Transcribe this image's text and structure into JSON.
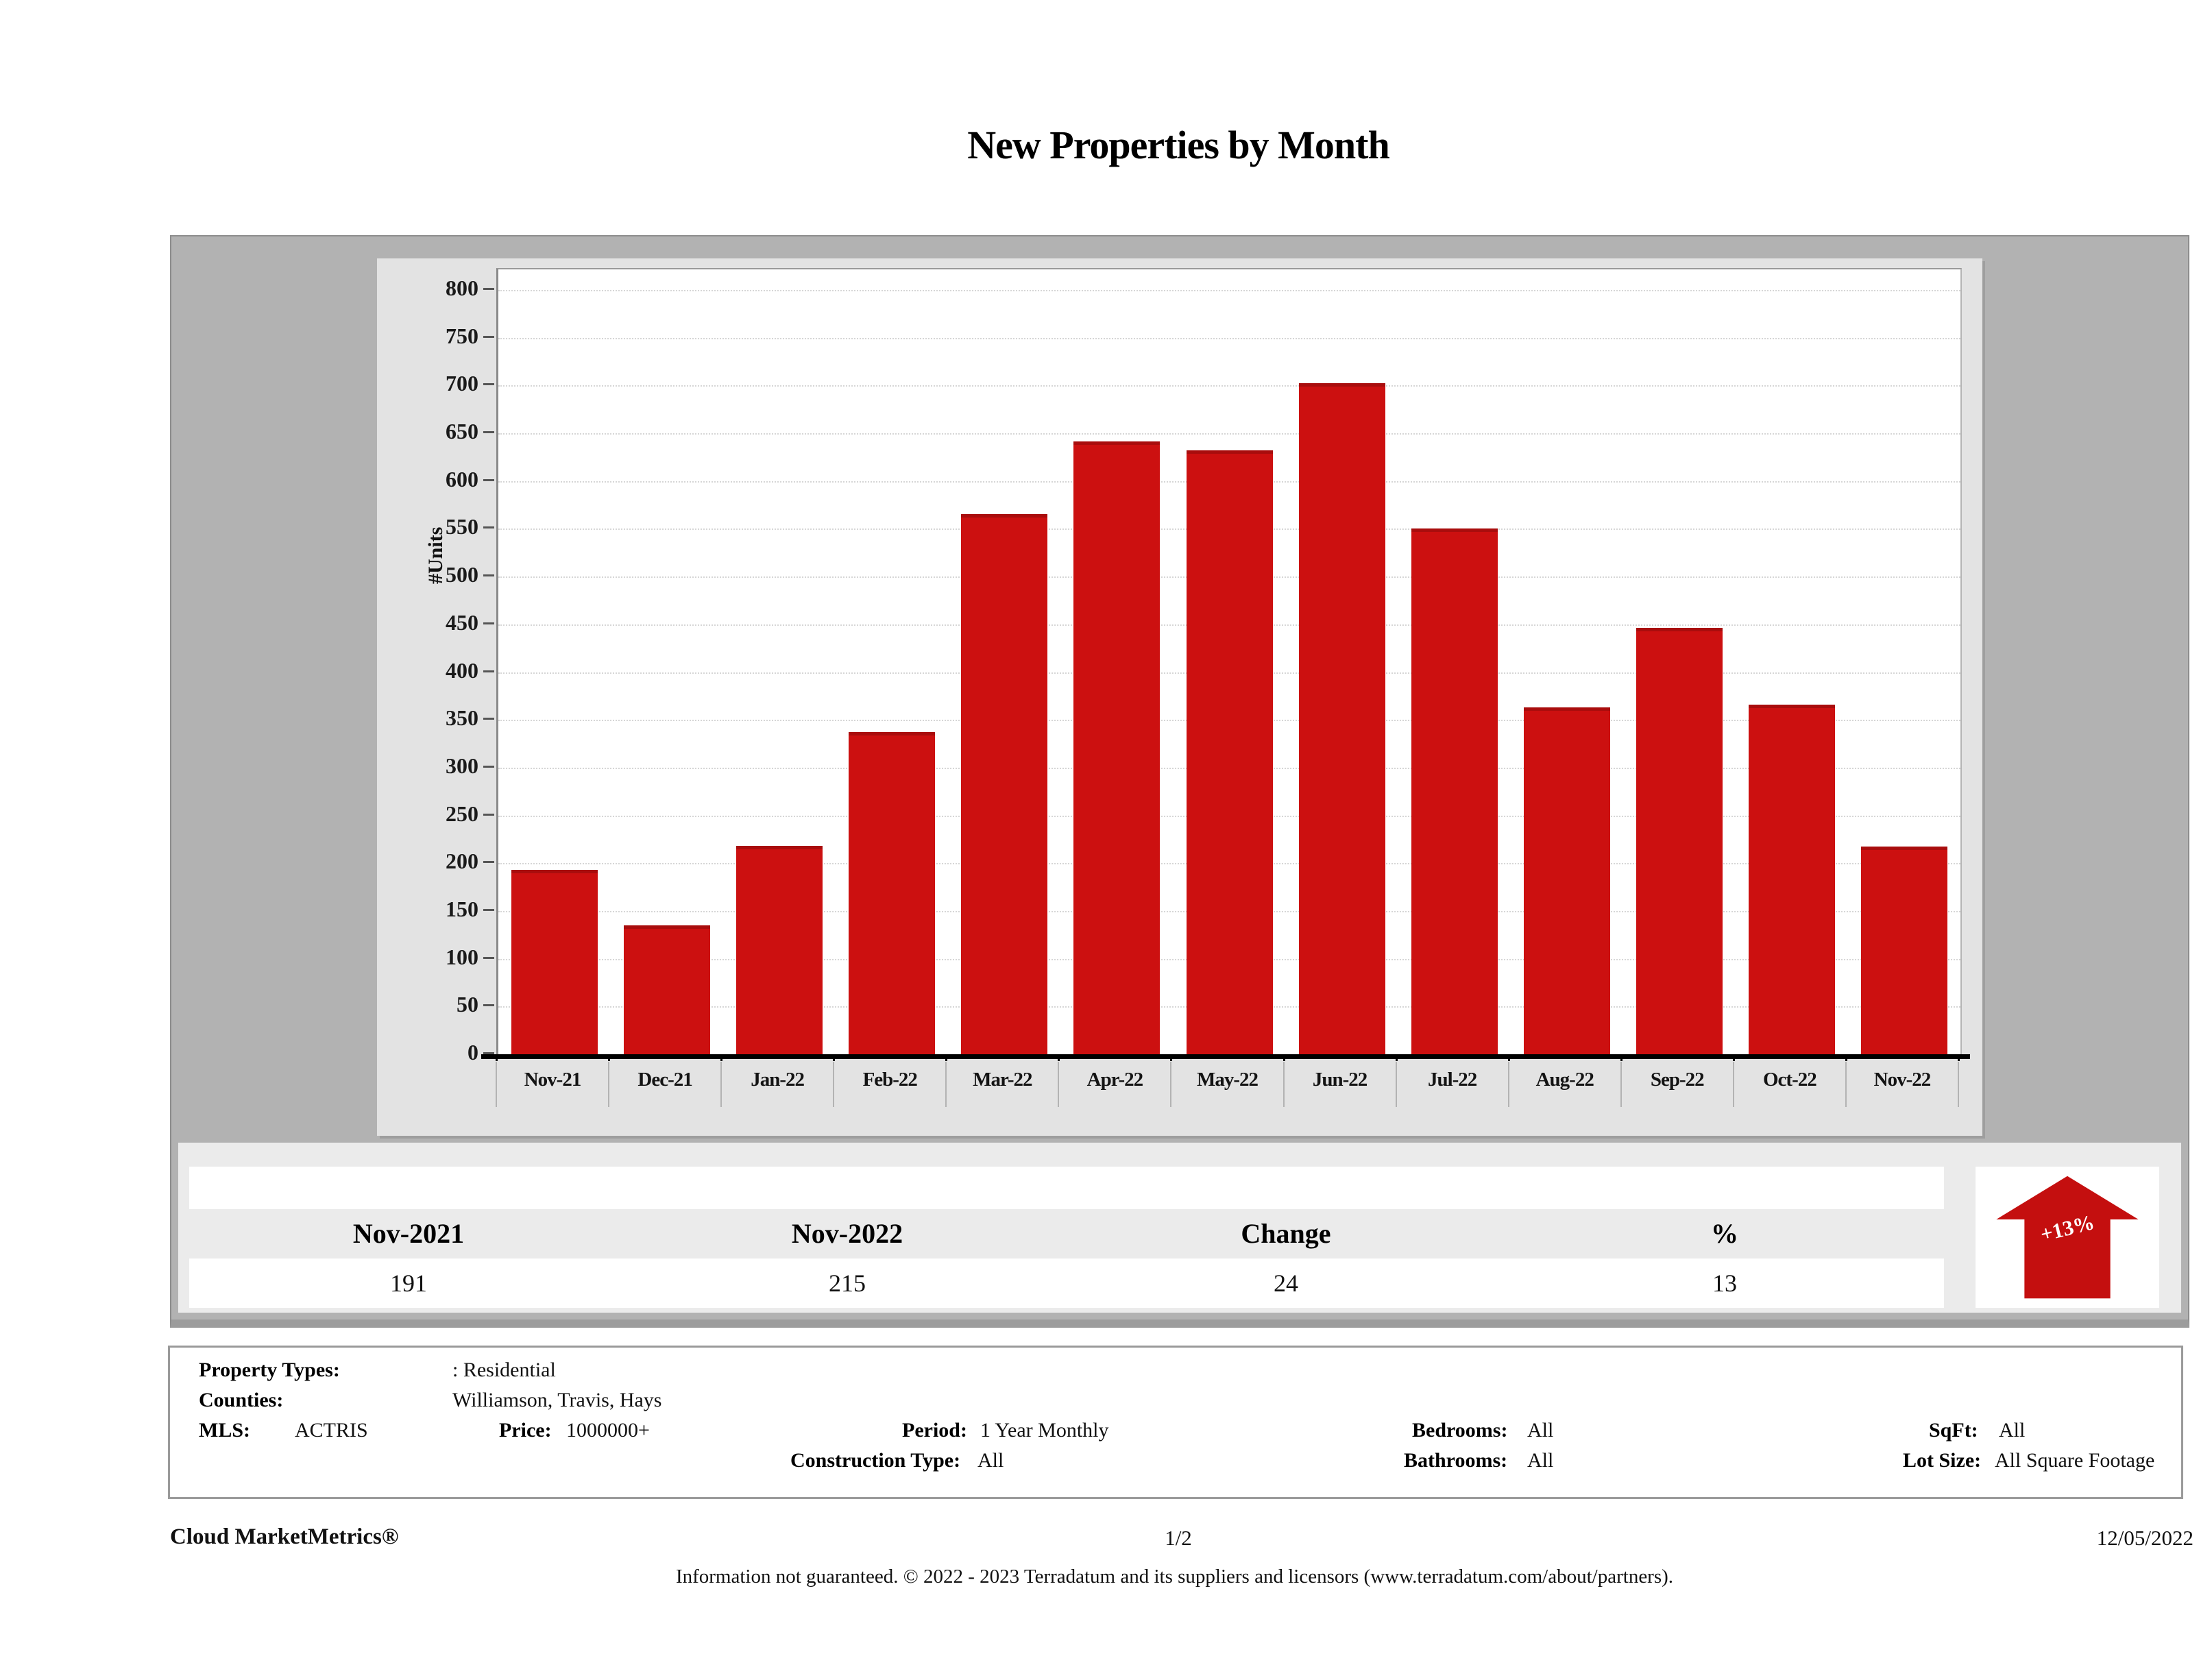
{
  "title": "New Properties by Month",
  "chart_data": {
    "type": "bar",
    "title": "New Properties by Month",
    "xlabel": "",
    "ylabel": "#Units",
    "categories": [
      "Nov-21",
      "Dec-21",
      "Jan-22",
      "Feb-22",
      "Mar-22",
      "Apr-22",
      "May-22",
      "Jun-22",
      "Jul-22",
      "Aug-22",
      "Sep-22",
      "Oct-22",
      "Nov-22"
    ],
    "values": [
      191,
      133,
      216,
      335,
      563,
      639,
      630,
      700,
      548,
      361,
      444,
      364,
      215
    ],
    "ylim": [
      0,
      800
    ],
    "ytick_step": 50,
    "grid": true,
    "legend": "none",
    "bar_color": "#cc1010"
  },
  "summary_table": {
    "columns": [
      "Nov-2021",
      "Nov-2022",
      "Change",
      "%"
    ],
    "values": [
      "191",
      "215",
      "24",
      "13"
    ]
  },
  "change_badge": {
    "label": "+13%",
    "direction": "up",
    "color": "#c40f0f"
  },
  "filters": {
    "property_types_label": "Property Types:",
    "property_types_value": ": Residential",
    "counties_label": "Counties:",
    "counties_value": "Williamson, Travis, Hays",
    "mls_label": "MLS:",
    "mls_value": "ACTRIS",
    "price_label": "Price:",
    "price_value": "1000000+",
    "period_label": "Period:",
    "period_value": "1 Year Monthly",
    "construction_label": "Construction Type:",
    "construction_value": "All",
    "bedrooms_label": "Bedrooms:",
    "bedrooms_value": "All",
    "bathrooms_label": "Bathrooms:",
    "bathrooms_value": "All",
    "sqft_label": "SqFt:",
    "sqft_value": "All",
    "lotsize_label": "Lot Size:",
    "lotsize_value": "All Square Footage"
  },
  "footer": {
    "brand": "Cloud MarketMetrics®",
    "page": "1/2",
    "date": "12/05/2022",
    "disclaimer": "Information not guaranteed. © 2022 - 2023 Terradatum and its suppliers and licensors (www.terradatum.com/about/partners)."
  }
}
